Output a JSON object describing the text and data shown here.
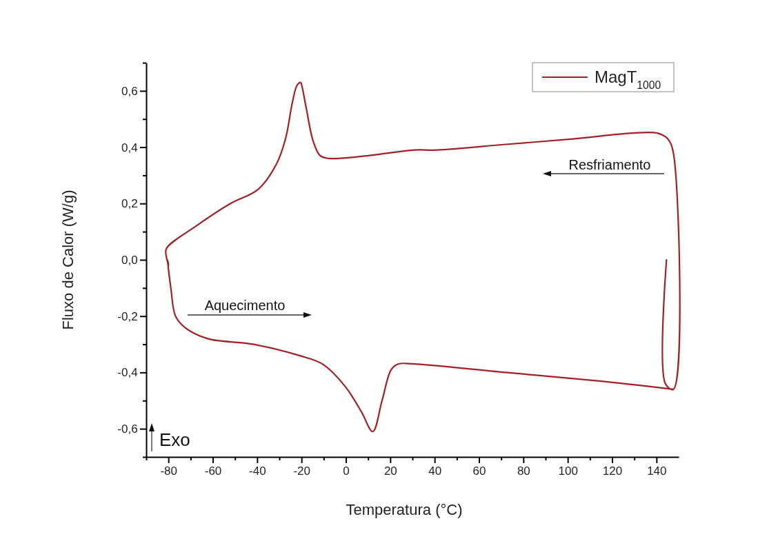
{
  "chart_data": {
    "type": "line",
    "xlabel": "Temperatura (°C)",
    "ylabel": "Fluxo de Calor (W/g)",
    "xlim": [
      -90,
      150
    ],
    "ylim": [
      -0.7,
      0.7
    ],
    "xticks": [
      {
        "value": -90,
        "label": null
      },
      {
        "value": -80,
        "label": "-80"
      },
      {
        "value": -70,
        "label": null
      },
      {
        "value": -60,
        "label": "-60"
      },
      {
        "value": -50,
        "label": null
      },
      {
        "value": -40,
        "label": "-40"
      },
      {
        "value": -30,
        "label": null
      },
      {
        "value": -20,
        "label": "-20"
      },
      {
        "value": -10,
        "label": null
      },
      {
        "value": 0,
        "label": "0"
      },
      {
        "value": 10,
        "label": null
      },
      {
        "value": 20,
        "label": "20"
      },
      {
        "value": 30,
        "label": null
      },
      {
        "value": 40,
        "label": "40"
      },
      {
        "value": 50,
        "label": null
      },
      {
        "value": 60,
        "label": "60"
      },
      {
        "value": 70,
        "label": null
      },
      {
        "value": 80,
        "label": "80"
      },
      {
        "value": 90,
        "label": null
      },
      {
        "value": 100,
        "label": "100"
      },
      {
        "value": 110,
        "label": null
      },
      {
        "value": 120,
        "label": "120"
      },
      {
        "value": 130,
        "label": null
      },
      {
        "value": 140,
        "label": "140"
      }
    ],
    "yticks": [
      {
        "value": -0.7,
        "label": null
      },
      {
        "value": -0.6,
        "label": "-0,6"
      },
      {
        "value": -0.5,
        "label": null
      },
      {
        "value": -0.4,
        "label": "-0,4"
      },
      {
        "value": -0.3,
        "label": null
      },
      {
        "value": -0.2,
        "label": "-0,2"
      },
      {
        "value": -0.1,
        "label": null
      },
      {
        "value": 0,
        "label": "0,0"
      },
      {
        "value": 0.1,
        "label": null
      },
      {
        "value": 0.2,
        "label": "0,2"
      },
      {
        "value": 0.3,
        "label": null
      },
      {
        "value": 0.4,
        "label": "0,4"
      },
      {
        "value": 0.5,
        "label": null
      },
      {
        "value": 0.6,
        "label": "0,6"
      },
      {
        "value": 0.7,
        "label": null
      }
    ],
    "grid": false,
    "legend": "top right",
    "marker": "none",
    "line_style": "solid",
    "annotations": [
      "Resfriamento",
      "Aquecimento",
      "Exo"
    ],
    "series": [
      {
        "name": "MagT$_{1000}$",
        "color": "#a31f24",
        "x": [
          144.5,
          144,
          147.6,
          147.6,
          145,
          140.4,
          129,
          103.2,
          72.1,
          41.1,
          30.8,
          10.1,
          -7.5,
          -11.6,
          -14.7,
          -17.9,
          -19.9,
          -20.4,
          -22,
          -24.1,
          -27.2,
          -31.3,
          -39.6,
          -52,
          -67.5,
          -80.9,
          -80.9,
          -79.9,
          -80.4,
          -78.9,
          -76.8,
          -72.6,
          -62.3,
          -41.6,
          -21,
          -10.6,
          -0.3,
          7,
          12.1,
          16.3,
          20.4,
          23.5,
          30.8,
          72,
          113.5,
          147.6
        ],
        "values": [
          0.0,
          -0.44,
          -0.46,
          0.38,
          0.43,
          0.45,
          0.45,
          0.43,
          0.41,
          0.39,
          0.39,
          0.37,
          0.36,
          0.37,
          0.42,
          0.54,
          0.62,
          0.63,
          0.62,
          0.56,
          0.43,
          0.34,
          0.25,
          0.2,
          0.12,
          0.04,
          0.01,
          -0.02,
          0.0,
          -0.1,
          -0.2,
          -0.24,
          -0.28,
          -0.3,
          -0.34,
          -0.37,
          -0.45,
          -0.54,
          -0.61,
          -0.5,
          -0.39,
          -0.37,
          -0.37,
          -0.4,
          -0.43,
          -0.46
        ]
      }
    ]
  }
}
